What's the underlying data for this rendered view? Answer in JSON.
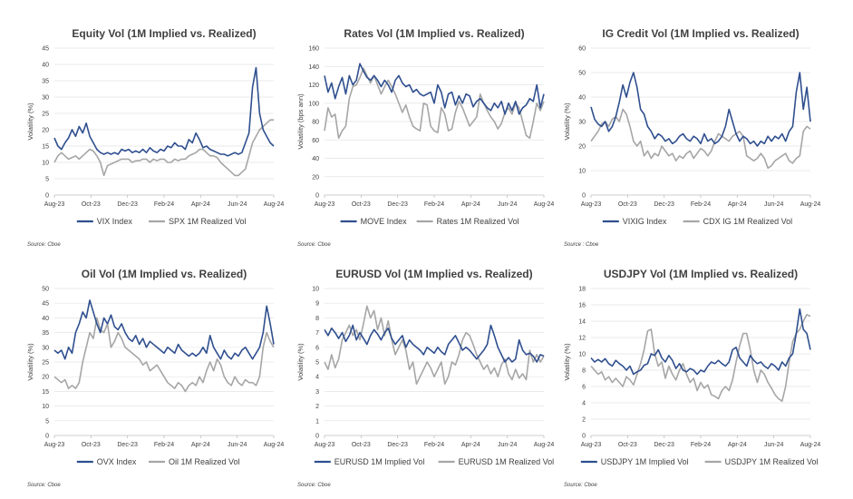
{
  "colors": {
    "implied": "#2f4f8f",
    "realized": "#a6a6a6"
  },
  "chart_data": [
    {
      "type": "line",
      "title": "Equity Vol (1M Implied vs. Realized)",
      "ylabel": "Volatility (%)",
      "ylim": [
        0,
        45
      ],
      "ystep": 5,
      "x_ticks": [
        "Aug-23",
        "Oct-23",
        "Dec-23",
        "Feb-24",
        "Apr-24",
        "Jun-24",
        "Aug-24"
      ],
      "source": "Source: Cboe",
      "series": [
        {
          "name": "VIX Index",
          "color": "#2f4f8f",
          "values": [
            17.5,
            15,
            14,
            16,
            17.5,
            20,
            18,
            21,
            19,
            22,
            18,
            16,
            14,
            13,
            12.5,
            13,
            12.5,
            13,
            12.5,
            14,
            13.5,
            14,
            13,
            13.5,
            13,
            14,
            13,
            14.5,
            13.5,
            13,
            14,
            13.5,
            15,
            14.5,
            16,
            15,
            15,
            14,
            17,
            16,
            19,
            17,
            14.5,
            15,
            14,
            13.5,
            13,
            12.5,
            12.5,
            12,
            12.5,
            13,
            12.5,
            13,
            16,
            19,
            33,
            39,
            25,
            20,
            18,
            16,
            15
          ]
        },
        {
          "name": "SPX 1M Realized Vol",
          "color": "#a6a6a6",
          "values": [
            10,
            12,
            13,
            12,
            11,
            11.5,
            12,
            11,
            12,
            13,
            14,
            13.5,
            12,
            10,
            6,
            9,
            9.5,
            10,
            10.5,
            11,
            11,
            11,
            10,
            10.5,
            10.5,
            11,
            11,
            10,
            11,
            10.5,
            11,
            11,
            10,
            10,
            11,
            10.5,
            11,
            11,
            12,
            12.5,
            13,
            14,
            14,
            13,
            12,
            12,
            11.5,
            10,
            9,
            8,
            7,
            6,
            6,
            7,
            8,
            12,
            16,
            18,
            20,
            21,
            22,
            23,
            23
          ]
        }
      ]
    },
    {
      "type": "line",
      "title": "Rates Vol (1M Implied vs. Realized)",
      "ylabel": "Volatility (bps ann)",
      "ylim": [
        0,
        160
      ],
      "ystep": 20,
      "x_ticks": [
        "Aug-23",
        "Oct-23",
        "Dec-23",
        "Feb-24",
        "Apr-24",
        "Jun-24",
        "Aug-24"
      ],
      "source": "Source: Cboe",
      "series": [
        {
          "name": "MOVE Index",
          "color": "#2f4f8f",
          "values": [
            130,
            112,
            122,
            105,
            118,
            128,
            110,
            130,
            120,
            125,
            143,
            135,
            128,
            125,
            130,
            125,
            118,
            125,
            120,
            112,
            125,
            130,
            122,
            118,
            120,
            112,
            115,
            110,
            108,
            110,
            112,
            100,
            120,
            112,
            95,
            110,
            112,
            98,
            108,
            100,
            110,
            108,
            96,
            102,
            105,
            100,
            95,
            92,
            100,
            95,
            102,
            88,
            100,
            92,
            102,
            88,
            95,
            98,
            105,
            102,
            120,
            95,
            110
          ]
        },
        {
          "name": "Rates 1M Realized Vol",
          "color": "#a6a6a6",
          "values": [
            70,
            95,
            85,
            88,
            62,
            70,
            75,
            105,
            118,
            120,
            128,
            138,
            130,
            122,
            130,
            120,
            110,
            118,
            125,
            118,
            110,
            100,
            90,
            98,
            85,
            75,
            72,
            70,
            100,
            98,
            75,
            70,
            68,
            95,
            88,
            70,
            72,
            90,
            102,
            95,
            85,
            75,
            80,
            85,
            110,
            100,
            92,
            85,
            80,
            72,
            78,
            90,
            95,
            88,
            100,
            95,
            80,
            65,
            62,
            80,
            100,
            92,
            102
          ]
        }
      ]
    },
    {
      "type": "line",
      "title": "IG Credit Vol (1M Implied vs. Realized)",
      "ylabel": "Volatility (%)",
      "ylim": [
        0,
        60
      ],
      "ystep": 10,
      "x_ticks": [
        "Aug-23",
        "Oct-23",
        "Dec-23",
        "Feb-24",
        "Apr-24",
        "Jun-24",
        "Aug-24"
      ],
      "source": "Source : Cboe",
      "series": [
        {
          "name": "VIXIG Index",
          "color": "#2f4f8f",
          "values": [
            36,
            31,
            29,
            28,
            30,
            26,
            28,
            32,
            38,
            45,
            40,
            46,
            50,
            44,
            35,
            33,
            28,
            26,
            23,
            25,
            24,
            22,
            23,
            21,
            22,
            24,
            25,
            23,
            22,
            24,
            23,
            21,
            25,
            22,
            23,
            21,
            22,
            24,
            28,
            35,
            30,
            25,
            22,
            24,
            23,
            21,
            22,
            20,
            22,
            21,
            24,
            22,
            24,
            23,
            25,
            22,
            26,
            28,
            42,
            50,
            35,
            44,
            30
          ]
        },
        {
          "name": "CDX IG 1M Realized Vol",
          "color": "#a6a6a6",
          "values": [
            22,
            24,
            26,
            29,
            30,
            28,
            31,
            32,
            30,
            35,
            33,
            28,
            22,
            20,
            22,
            16,
            18,
            15,
            17,
            16,
            20,
            18,
            16,
            17,
            14,
            16,
            15,
            17,
            18,
            15,
            17,
            19,
            18,
            16,
            18,
            22,
            25,
            24,
            23,
            22,
            24,
            25,
            26,
            24,
            16,
            15,
            14,
            15,
            17,
            15,
            11,
            12,
            14,
            15,
            16,
            17,
            14,
            13,
            15,
            16,
            26,
            28,
            27
          ]
        }
      ]
    },
    {
      "type": "line",
      "title": "Oil Vol (1M Implied vs. Realized)",
      "ylabel": "Volatility (%)",
      "ylim": [
        0,
        50
      ],
      "ystep": 5,
      "x_ticks": [
        "Aug-23",
        "Oct-23",
        "Dec-23",
        "Feb-24",
        "Apr-24",
        "Jun-24",
        "Aug-24"
      ],
      "source": "Source: Cboe",
      "series": [
        {
          "name": "OVX Index",
          "color": "#2f4f8f",
          "values": [
            29,
            28,
            29,
            26,
            30,
            28,
            35,
            38,
            42,
            40,
            46,
            42,
            38,
            35,
            40,
            38,
            41,
            37,
            36,
            38,
            35,
            33,
            32,
            34,
            31,
            33,
            30,
            32,
            31,
            30,
            29,
            28,
            30,
            29,
            28,
            31,
            29,
            28,
            27,
            28,
            27,
            28,
            30,
            28,
            34,
            30,
            28,
            26,
            29,
            27,
            26,
            28,
            27,
            29,
            30,
            28,
            26,
            28,
            30,
            35,
            44,
            38,
            31
          ]
        },
        {
          "name": "Oil 1M Realized Vol",
          "color": "#a6a6a6",
          "values": [
            20,
            19,
            18,
            19,
            16,
            17,
            16,
            18,
            25,
            30,
            35,
            33,
            40,
            36,
            35,
            38,
            30,
            32,
            35,
            33,
            30,
            29,
            28,
            27,
            26,
            24,
            25,
            22,
            23,
            24,
            22,
            20,
            18,
            17,
            16,
            18,
            17,
            15,
            17,
            18,
            17,
            20,
            18,
            22,
            25,
            22,
            26,
            24,
            20,
            18,
            17,
            20,
            18,
            17,
            19,
            18,
            18,
            17,
            20,
            30,
            35,
            32,
            30
          ]
        }
      ]
    },
    {
      "type": "line",
      "title": "EURUSD Vol (1M Implied vs. Realized)",
      "ylabel": "Volatility (%)",
      "ylim": [
        0,
        10
      ],
      "ystep": 1,
      "x_ticks": [
        "Aug-23",
        "Oct-23",
        "Dec-23",
        "Feb-24",
        "Apr-24",
        "Jun-24",
        "Aug-24"
      ],
      "source": "Source: Cboe",
      "series": [
        {
          "name": "EURUSD 1M Implied Vol",
          "color": "#2f4f8f",
          "values": [
            7.2,
            6.8,
            7.3,
            7.0,
            6.6,
            7.0,
            6.4,
            6.8,
            7.5,
            6.5,
            7.0,
            6.6,
            6.2,
            6.8,
            7.2,
            6.9,
            6.5,
            7.0,
            7.3,
            6.6,
            6.2,
            6.5,
            6.8,
            6.0,
            6.5,
            6.2,
            6.0,
            5.8,
            5.5,
            6.0,
            5.8,
            5.6,
            6.0,
            5.7,
            5.5,
            6.2,
            6.5,
            6.8,
            6.3,
            5.8,
            6.0,
            5.8,
            5.5,
            5.2,
            5.5,
            5.8,
            6.2,
            7.5,
            6.8,
            6.0,
            5.5,
            5.0,
            5.3,
            5.0,
            5.2,
            6.5,
            5.8,
            5.5,
            5.6,
            5.4,
            5.0,
            5.5,
            5.4
          ]
        },
        {
          "name": "EURUSD 1M Realized Vol",
          "color": "#a6a6a6",
          "values": [
            5.0,
            4.5,
            5.5,
            4.6,
            5.2,
            6.5,
            7.0,
            7.5,
            6.8,
            7.2,
            6.5,
            7.6,
            8.8,
            8.0,
            8.5,
            7.2,
            8.0,
            6.8,
            7.8,
            6.5,
            5.5,
            6.0,
            6.5,
            5.8,
            4.5,
            5.0,
            3.5,
            4.0,
            4.5,
            5.0,
            4.6,
            4.0,
            4.5,
            5.0,
            3.5,
            4.0,
            5.0,
            4.8,
            5.5,
            6.5,
            7.0,
            6.8,
            6.2,
            5.5,
            5.0,
            4.5,
            4.8,
            4.2,
            4.6,
            4.0,
            4.8,
            5.2,
            4.2,
            3.8,
            4.5,
            3.9,
            4.2,
            3.8,
            5.8,
            5.0,
            5.5,
            5.0,
            5.4
          ]
        }
      ]
    },
    {
      "type": "line",
      "title": "USDJPY Vol (1M Implied vs. Realized)",
      "ylabel": "Volatility (%)",
      "ylim": [
        0,
        18
      ],
      "ystep": 2,
      "x_ticks": [
        "Aug-23",
        "Oct-23",
        "Dec-23",
        "Feb-24",
        "Apr-24",
        "Jun-24",
        "Aug-24"
      ],
      "source": "Source: Cboe",
      "series": [
        {
          "name": "USDJPY 1M Implied Vol",
          "color": "#2f4f8f",
          "values": [
            9.5,
            9.0,
            9.3,
            9.0,
            9.4,
            8.8,
            8.5,
            9.2,
            8.8,
            8.5,
            8.0,
            8.5,
            7.5,
            7.8,
            8.0,
            8.6,
            8.8,
            10.0,
            9.8,
            10.5,
            9.5,
            9.0,
            9.8,
            9.2,
            8.2,
            8.8,
            8.0,
            7.8,
            8.2,
            8.0,
            7.5,
            8.0,
            7.8,
            8.5,
            9.0,
            8.8,
            9.2,
            8.8,
            8.5,
            9.0,
            10.5,
            10.8,
            9.5,
            9.0,
            8.5,
            9.8,
            9.2,
            8.8,
            9.0,
            8.5,
            8.2,
            8.8,
            8.5,
            8.0,
            9.0,
            8.5,
            9.5,
            10.0,
            12.5,
            15.5,
            13.0,
            12.5,
            10.5
          ]
        },
        {
          "name": "USDJPY 1M Realized Vol",
          "color": "#a6a6a6",
          "values": [
            8.5,
            8.0,
            7.5,
            7.8,
            6.8,
            7.2,
            6.5,
            7.0,
            6.5,
            6.0,
            7.2,
            6.8,
            6.2,
            7.5,
            8.8,
            10.5,
            12.8,
            13.0,
            10.0,
            8.5,
            9.0,
            7.0,
            8.5,
            7.5,
            6.8,
            8.0,
            8.8,
            7.5,
            6.5,
            7.0,
            5.5,
            6.5,
            5.8,
            6.2,
            5.0,
            4.8,
            4.5,
            5.5,
            6.0,
            5.5,
            6.8,
            9.0,
            11.0,
            12.5,
            12.5,
            10.5,
            8.0,
            6.5,
            8.0,
            7.5,
            6.5,
            5.8,
            5.0,
            4.5,
            4.2,
            6.0,
            9.0,
            11.5,
            12.5,
            13.0,
            14.0,
            14.8,
            14.6
          ]
        }
      ]
    }
  ]
}
